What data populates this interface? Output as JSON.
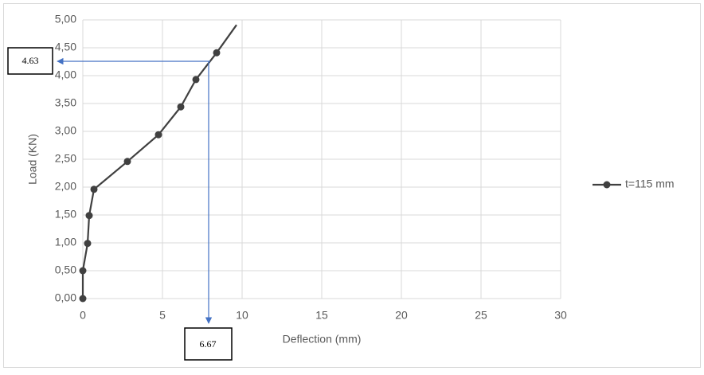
{
  "chart_data": {
    "type": "line",
    "x_label": "Deflection (mm)",
    "y_label": "Load (KN)",
    "series": [
      {
        "name": "t=115 mm",
        "color": "#404040",
        "x": [
          0,
          0,
          0.3,
          0.4,
          0.7,
          2.8,
          4.75,
          6.15,
          7.1,
          8.4,
          9.65
        ],
        "values": [
          0,
          0.5,
          0.99,
          1.49,
          1.96,
          2.46,
          2.94,
          3.44,
          3.93,
          4.41,
          4.91
        ]
      }
    ],
    "xlim": [
      0,
      30
    ],
    "xticks": [
      0,
      5,
      10,
      15,
      20,
      25,
      30
    ],
    "ylim": [
      0,
      5
    ],
    "yticks": [
      {
        "value": 0,
        "label": "0,00"
      },
      {
        "value": 0.5,
        "label": "0,50"
      },
      {
        "value": 1,
        "label": "1,00"
      },
      {
        "value": 1.5,
        "label": "1,50"
      },
      {
        "value": 2,
        "label": "2,00"
      },
      {
        "value": 2.5,
        "label": "2,50"
      },
      {
        "value": 3,
        "label": "3,00"
      },
      {
        "value": 3.5,
        "label": "3,50"
      },
      {
        "value": 4,
        "label": "4,00"
      },
      {
        "value": 4.5,
        "label": "4,50"
      },
      {
        "value": 5,
        "label": "5,00"
      }
    ],
    "grid": true,
    "legend": "right",
    "annotations": [
      "4.63",
      "6.67"
    ]
  }
}
